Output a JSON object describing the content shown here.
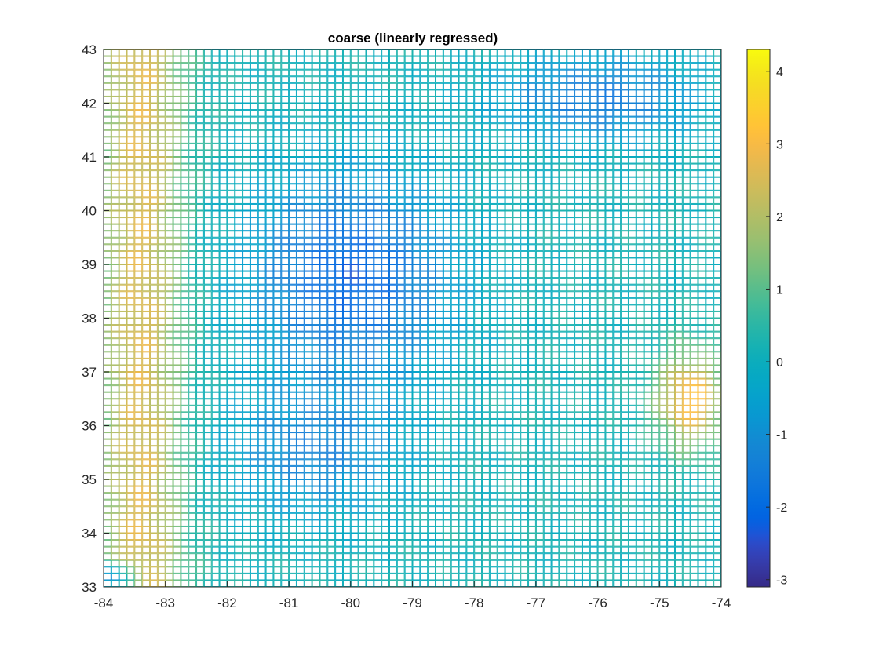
{
  "chart_data": {
    "type": "heatmap",
    "title": "coarse (linearly regressed)",
    "xlabel": "",
    "ylabel": "",
    "xlim": [
      -84,
      -74
    ],
    "ylim": [
      33,
      43
    ],
    "grid_step": 0.125,
    "x_ticks": [
      "-84",
      "-83",
      "-82",
      "-81",
      "-80",
      "-79",
      "-78",
      "-77",
      "-76",
      "-75",
      "-74"
    ],
    "y_ticks": [
      "33",
      "34",
      "35",
      "36",
      "37",
      "38",
      "39",
      "40",
      "41",
      "42",
      "43"
    ],
    "colorbar": {
      "range": [
        -3.1,
        4.3
      ],
      "ticks": [
        "-3",
        "-2",
        "-1",
        "0",
        "1",
        "2",
        "3",
        "4"
      ],
      "colormap": "parula"
    },
    "field_features": {
      "baseline": 0.2,
      "west_warm_band": {
        "lon": -83.4,
        "value": 3.0
      },
      "central_low": {
        "lon": -80.0,
        "lat": 38.8,
        "value": -2.1
      },
      "northeast_low": {
        "lon": -76.0,
        "lat": 42.1,
        "value": -1.5
      },
      "southeast_warm": {
        "lon": -74.5,
        "lat": 36.5,
        "value": 3.2
      },
      "southwest_low": {
        "lon": -83.8,
        "lat": 33.2,
        "value": -2.6
      }
    }
  },
  "colors": {
    "axis": "#262626",
    "background": "#ffffff"
  }
}
